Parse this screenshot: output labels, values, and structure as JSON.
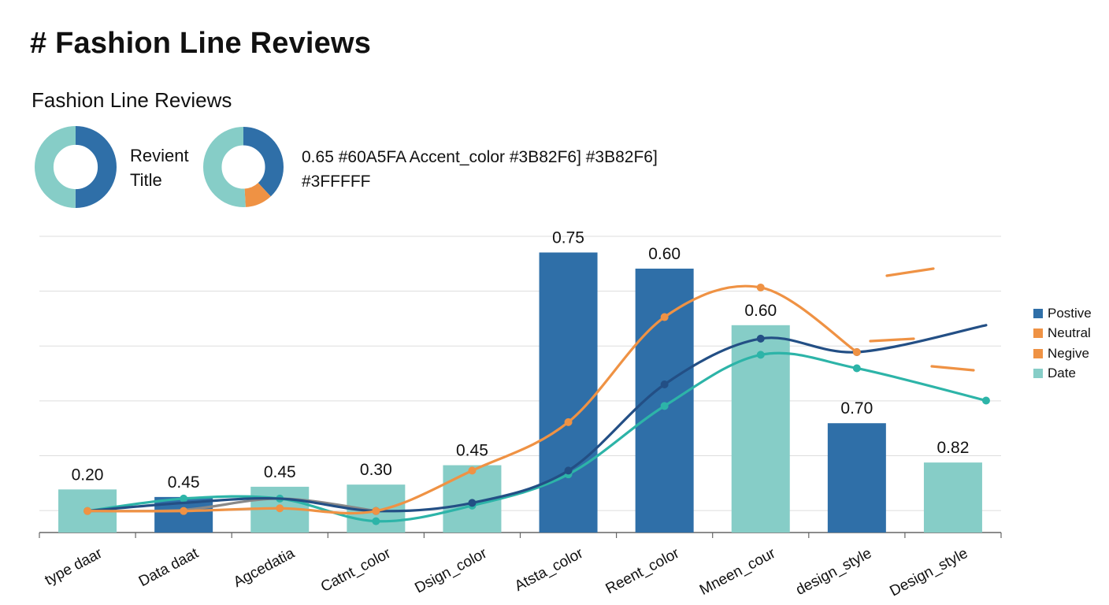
{
  "header": {
    "page_title": "# Fashion Line Reviews",
    "section_title": "Fashion Line Reviews"
  },
  "donuts": {
    "caption_line1": "Revient",
    "caption_line2": "Title",
    "first": [
      {
        "value": 0.5,
        "color": "#2F6FA8"
      },
      {
        "value": 0.5,
        "color": "#86CDC7"
      }
    ],
    "second": [
      {
        "value": 0.38,
        "color": "#2F6FA8"
      },
      {
        "value": 0.11,
        "color": "#EF9244"
      },
      {
        "value": 0.51,
        "color": "#86CDC7"
      }
    ]
  },
  "info": {
    "line1": "0.65  #60A5FA  Accent_color  #3B82F6]  #3B82F6]",
    "line2": "#3FFFFF"
  },
  "colors": {
    "positive": "#2F6FA8",
    "neutral": "#EF9244",
    "negative": "#EF9244",
    "date": "#86CDC7",
    "line_dark": "#234F85",
    "line_teal": "#2DB4A8",
    "line_grey": "#888888",
    "grid": "#DDDDDD",
    "axis": "#666666"
  },
  "chart_data": {
    "type": "bar",
    "categories": [
      "type daar",
      "Data daat",
      "Agcedatia",
      "Catnt_color",
      "Dsign_color",
      "Atsta_color",
      "Reent_color",
      "Mneen_cour",
      "design_style",
      "Design_style"
    ],
    "bars": [
      {
        "value": 0.08,
        "label": "0.20",
        "series": "date"
      },
      {
        "value": 0.066,
        "label": "0.45",
        "series": "positive"
      },
      {
        "value": 0.085,
        "label": "0.45",
        "series": "date"
      },
      {
        "value": 0.089,
        "label": "0.30",
        "series": "date"
      },
      {
        "value": 0.125,
        "label": "0.45",
        "series": "date"
      },
      {
        "value": 0.52,
        "label": "0.75",
        "series": "positive"
      },
      {
        "value": 0.49,
        "label": "0.60",
        "series": "positive"
      },
      {
        "value": 0.385,
        "label": "0.60",
        "series": "date"
      },
      {
        "value": 0.203,
        "label": "0.70",
        "series": "positive"
      },
      {
        "value": 0.13,
        "label": "0.82",
        "series": "date"
      }
    ],
    "lines": [
      {
        "key": "neutral",
        "values": [
          0.04,
          0.04,
          0.045,
          0.04,
          0.115,
          0.205,
          0.4,
          0.455,
          0.335
        ]
      },
      {
        "key": "dark",
        "values": [
          0.04,
          0.055,
          0.063,
          0.04,
          0.055,
          0.115,
          0.275,
          0.36,
          0.335,
          0.385
        ]
      },
      {
        "key": "teal",
        "values": [
          0.04,
          0.063,
          0.063,
          0.021,
          0.05,
          0.108,
          0.235,
          0.33,
          0.305,
          0.245
        ]
      },
      {
        "key": "grey",
        "values": [
          0.04,
          0.042,
          0.063,
          0.04
        ]
      }
    ],
    "ylim": [
      0,
      0.55
    ],
    "legend": [
      "Postive",
      "Neutral",
      "Negive",
      "Date"
    ],
    "legend_position": "right",
    "grid": true
  }
}
